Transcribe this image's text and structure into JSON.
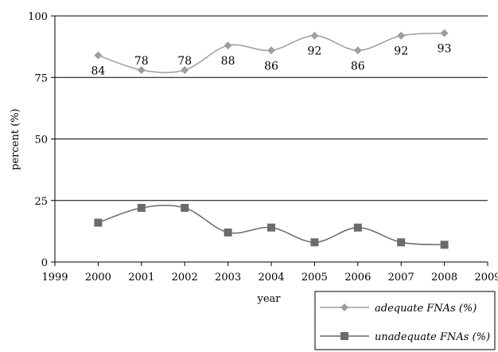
{
  "chart_data": {
    "type": "line",
    "title": "",
    "xlabel": "year",
    "ylabel": "percent (%)",
    "xlim": [
      1999,
      2009
    ],
    "ylim": [
      0,
      100
    ],
    "x_ticks": [
      1999,
      2000,
      2001,
      2002,
      2003,
      2004,
      2005,
      2006,
      2007,
      2008,
      2009
    ],
    "y_ticks": [
      0,
      25,
      50,
      75,
      100
    ],
    "grid": "horizontal",
    "legend_position": "bottom-right",
    "x": [
      2000,
      2001,
      2002,
      2003,
      2004,
      2005,
      2006,
      2007,
      2008
    ],
    "series": [
      {
        "name": "adequate FNAs (%)",
        "values": [
          84,
          78,
          78,
          88,
          86,
          92,
          86,
          92,
          93
        ],
        "labels": [
          "84",
          "78",
          "78",
          "88",
          "86",
          "92",
          "86",
          "92",
          "93"
        ],
        "marker": "diamond",
        "color": "#9e9e9e"
      },
      {
        "name": "unadequate FNAs (%)",
        "values": [
          16,
          22,
          22,
          12,
          14,
          8,
          14,
          8,
          7
        ],
        "marker": "square",
        "color": "#6b6b6b"
      }
    ]
  }
}
